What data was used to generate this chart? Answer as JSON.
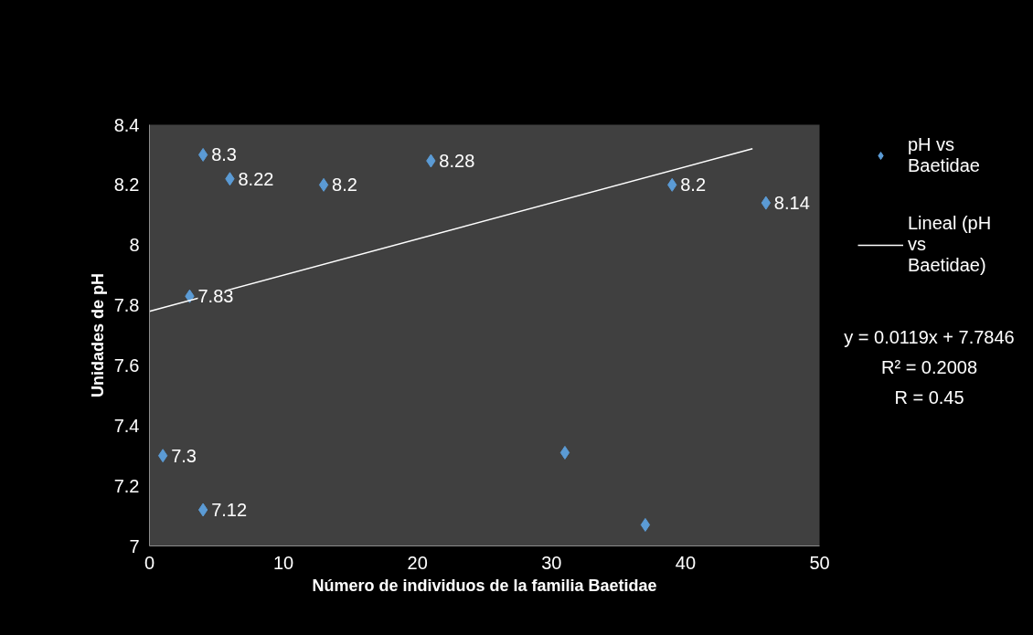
{
  "chart_data": {
    "type": "scatter",
    "xlabel": "Número de individuos de la familia Baetidae",
    "ylabel": "Unidades de pH",
    "xlim": [
      0,
      50
    ],
    "xticks": [
      0,
      10,
      20,
      30,
      40,
      50
    ],
    "ylim": [
      7,
      8.4
    ],
    "yticks": [
      7,
      7.2,
      7.4,
      7.6,
      7.8,
      8,
      8.2,
      8.4
    ],
    "grid": false,
    "legend": "right",
    "series": [
      {
        "name": "pH vs Baetidae",
        "color": "#5b9bd5",
        "marker": "diamond",
        "data_labels": true,
        "x": [
          4,
          6,
          13,
          21,
          39,
          46,
          3,
          1,
          4
        ],
        "values": [
          8.3,
          8.22,
          8.2,
          8.28,
          8.2,
          8.14,
          7.83,
          7.3,
          7.12
        ]
      },
      {
        "color": "#5b9bd5",
        "marker": "diamond",
        "x": [
          31,
          37
        ],
        "values": [
          7.31,
          7.07
        ]
      },
      {
        "name": "Lineal (pH vs Baetidae)",
        "type": "line",
        "color": "#ffffff",
        "line_style": "solid",
        "x": [
          0,
          45
        ],
        "values": [
          7.78,
          8.32
        ]
      }
    ],
    "annotations": [
      "y = 0.0119x + 7.7846",
      "R² = 0.2008",
      "R = 0.45"
    ]
  }
}
